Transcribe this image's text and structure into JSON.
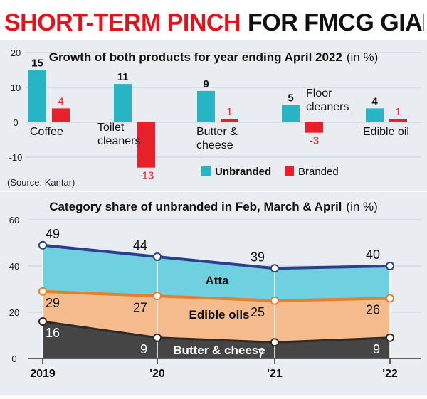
{
  "headline": {
    "part1": "SHORT-TERM PINCH",
    "part2": "FOR FMCG GIANTS"
  },
  "colors": {
    "unbranded": "#27b4c4",
    "branded": "#e8202a",
    "atta": "#6fd0e0",
    "edible_oils": "#f6bb8c",
    "butter": "#454545",
    "panel_bg": "#e9edf2",
    "headline_red": "#e2111b"
  },
  "chart_data": [
    {
      "type": "bar",
      "title": "Growth of both products for year ending April 2022",
      "title_unit": "(in %)",
      "categories": [
        "Coffee",
        "Toilet cleaners",
        "Butter & cheese",
        "Floor cleaners",
        "Edible oil"
      ],
      "category_lines": [
        [
          "Coffee"
        ],
        [
          "Toilet",
          "cleaners"
        ],
        [
          "Butter &",
          "cheese"
        ],
        [
          "Floor",
          "cleaners"
        ],
        [
          "Edible oil"
        ]
      ],
      "series": [
        {
          "name": "Unbranded",
          "values": [
            15,
            11,
            9,
            5,
            4
          ]
        },
        {
          "name": "Branded",
          "values": [
            4,
            -13,
            1,
            -3,
            1
          ]
        }
      ],
      "value_labels": [
        [
          "15",
          "11",
          "9",
          "5",
          "4"
        ],
        [
          "4",
          "-13",
          "1",
          "-3",
          "1"
        ]
      ],
      "yticks": [
        20,
        10,
        0,
        -10
      ],
      "ytick_labels": [
        "20",
        "10",
        "0",
        "-10"
      ],
      "ylim": [
        -15,
        22
      ],
      "legend": [
        "Unbranded",
        "Branded"
      ],
      "legend_position": "bottom-right",
      "source": "(Source: Kantar)"
    },
    {
      "type": "area",
      "title": "Category share of unbranded in Feb, March & April",
      "title_unit": "(in %)",
      "x": [
        "2019",
        "'20",
        "'21",
        "'22"
      ],
      "series": [
        {
          "name": "Butter & cheese",
          "values": [
            16,
            9,
            7,
            9
          ],
          "labels": [
            "16",
            "9",
            "7",
            "9"
          ]
        },
        {
          "name": "Edible oils",
          "values": [
            29,
            27,
            25,
            26
          ],
          "labels": [
            "29",
            "27",
            "25",
            "26"
          ]
        },
        {
          "name": "Atta",
          "values": [
            49,
            44,
            39,
            40
          ],
          "labels": [
            "49",
            "44",
            "39",
            "40"
          ]
        }
      ],
      "yticks": [
        60,
        40,
        20,
        0
      ],
      "ytick_labels": [
        "60",
        "40",
        "20",
        "0"
      ],
      "ylim": [
        0,
        60
      ]
    }
  ]
}
